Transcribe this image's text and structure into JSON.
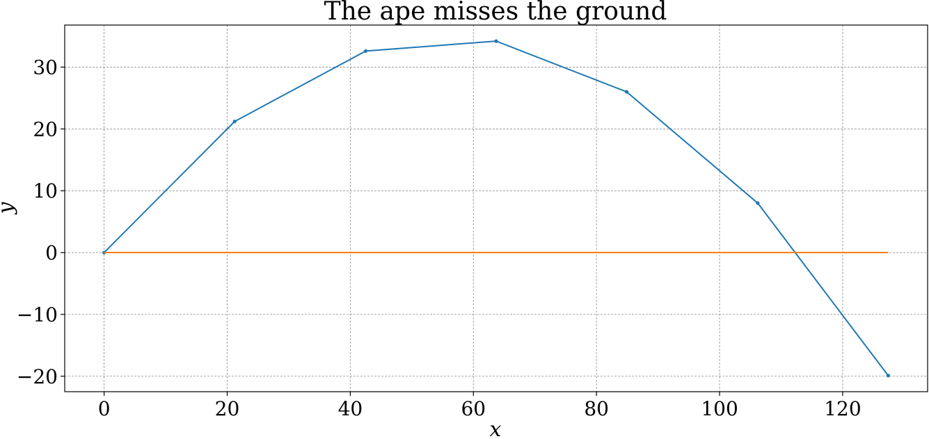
{
  "chart_data": {
    "type": "line",
    "title": "The ape misses the ground",
    "xlabel": "x",
    "ylabel": "y",
    "xlim": [
      -6.4,
      133.8
    ],
    "ylim": [
      -22.5,
      36.8
    ],
    "xticks": [
      0,
      20,
      40,
      60,
      80,
      100,
      120
    ],
    "yticks": [
      -20,
      -10,
      0,
      10,
      20,
      30
    ],
    "xtick_labels": [
      "0",
      "20",
      "40",
      "60",
      "80",
      "100",
      "120"
    ],
    "ytick_labels": [
      "−20",
      "−10",
      "0",
      "10",
      "20",
      "30"
    ],
    "grid": true,
    "legend": "none",
    "series": [
      {
        "color": "#1f77b4",
        "markers": true,
        "x": [
          0,
          21.2,
          42.5,
          63.7,
          84.9,
          106.2,
          127.4
        ],
        "y": [
          0,
          21.2,
          32.6,
          34.2,
          26.0,
          8.0,
          -19.9
        ]
      },
      {
        "color": "#ff7f0e",
        "markers": false,
        "x": [
          0,
          127.4
        ],
        "y": [
          0,
          0
        ]
      }
    ]
  }
}
